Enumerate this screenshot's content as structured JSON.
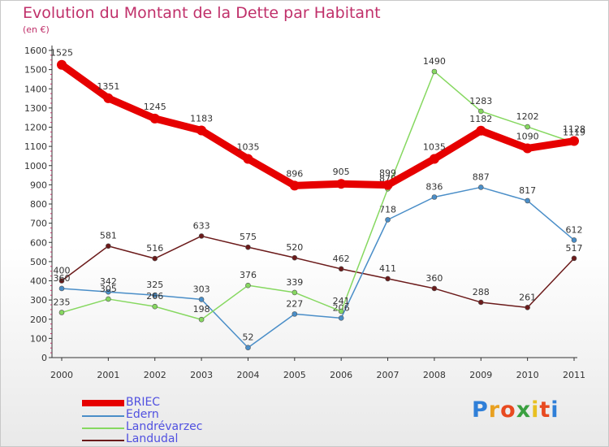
{
  "title": "Evolution du Montant de la Dette par Habitant",
  "unit": "(en €)",
  "logo": "Proxiti",
  "chart_data": {
    "type": "line",
    "x": [
      "2000",
      "2001",
      "2002",
      "2003",
      "2004",
      "2005",
      "2006",
      "2007",
      "2008",
      "2009",
      "2010",
      "2011"
    ],
    "ylim": [
      0,
      1600
    ],
    "yticks": [
      0,
      100,
      200,
      300,
      400,
      500,
      600,
      700,
      800,
      900,
      1000,
      1100,
      1200,
      1300,
      1400,
      1500,
      1600
    ],
    "grid": false,
    "legend": "bottom-left",
    "series": [
      {
        "name": "BRIEC",
        "color": "#e60000",
        "values": [
          1525,
          1351,
          1245,
          1183,
          1035,
          896,
          905,
          899,
          1035,
          1182,
          1090,
          1128
        ]
      },
      {
        "name": "Edern",
        "color": "#4a8ec8",
        "values": [
          360,
          342,
          325,
          303,
          52,
          227,
          206,
          718,
          836,
          887,
          817,
          612
        ]
      },
      {
        "name": "Landrévarzec",
        "color": "#86d860",
        "values": [
          235,
          305,
          266,
          198,
          376,
          339,
          241,
          879,
          1490,
          1283,
          1202,
          1119
        ]
      },
      {
        "name": "Landudal",
        "color": "#6b1a1a",
        "values": [
          400,
          581,
          516,
          633,
          575,
          520,
          462,
          411,
          360,
          288,
          261,
          517
        ]
      }
    ]
  }
}
